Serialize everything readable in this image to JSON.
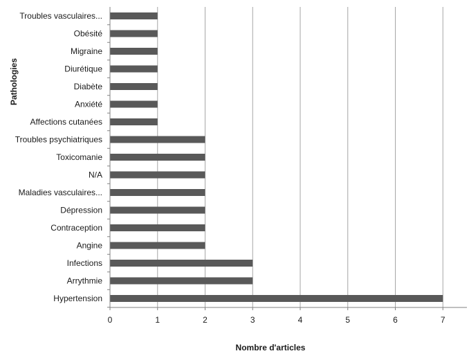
{
  "chart_data": {
    "type": "bar",
    "orientation": "horizontal",
    "categories": [
      "Hypertension",
      "Arrythmie",
      "Infections",
      "Angine",
      "Contraception",
      "Dépression",
      "Maladies vasculaires...",
      "N/A",
      "Toxicomanie",
      "Troubles psychiatriques",
      "Affections cutanées",
      "Anxiété",
      "Diabète",
      "Diurétique",
      "Migraine",
      "Obésité",
      "Troubles vasculaires..."
    ],
    "values": [
      7,
      3,
      3,
      2,
      2,
      2,
      2,
      2,
      2,
      2,
      1,
      1,
      1,
      1,
      1,
      1,
      1
    ],
    "xlabel": "Nombre d'articles",
    "ylabel": "Pathologies",
    "xlim": [
      0,
      7.5
    ],
    "xticks": [
      "0",
      "1",
      "2",
      "3",
      "4",
      "5",
      "6",
      "7"
    ],
    "grid": "vertical",
    "bar_color": "#595959",
    "grid_color": "#a6a6a6"
  }
}
